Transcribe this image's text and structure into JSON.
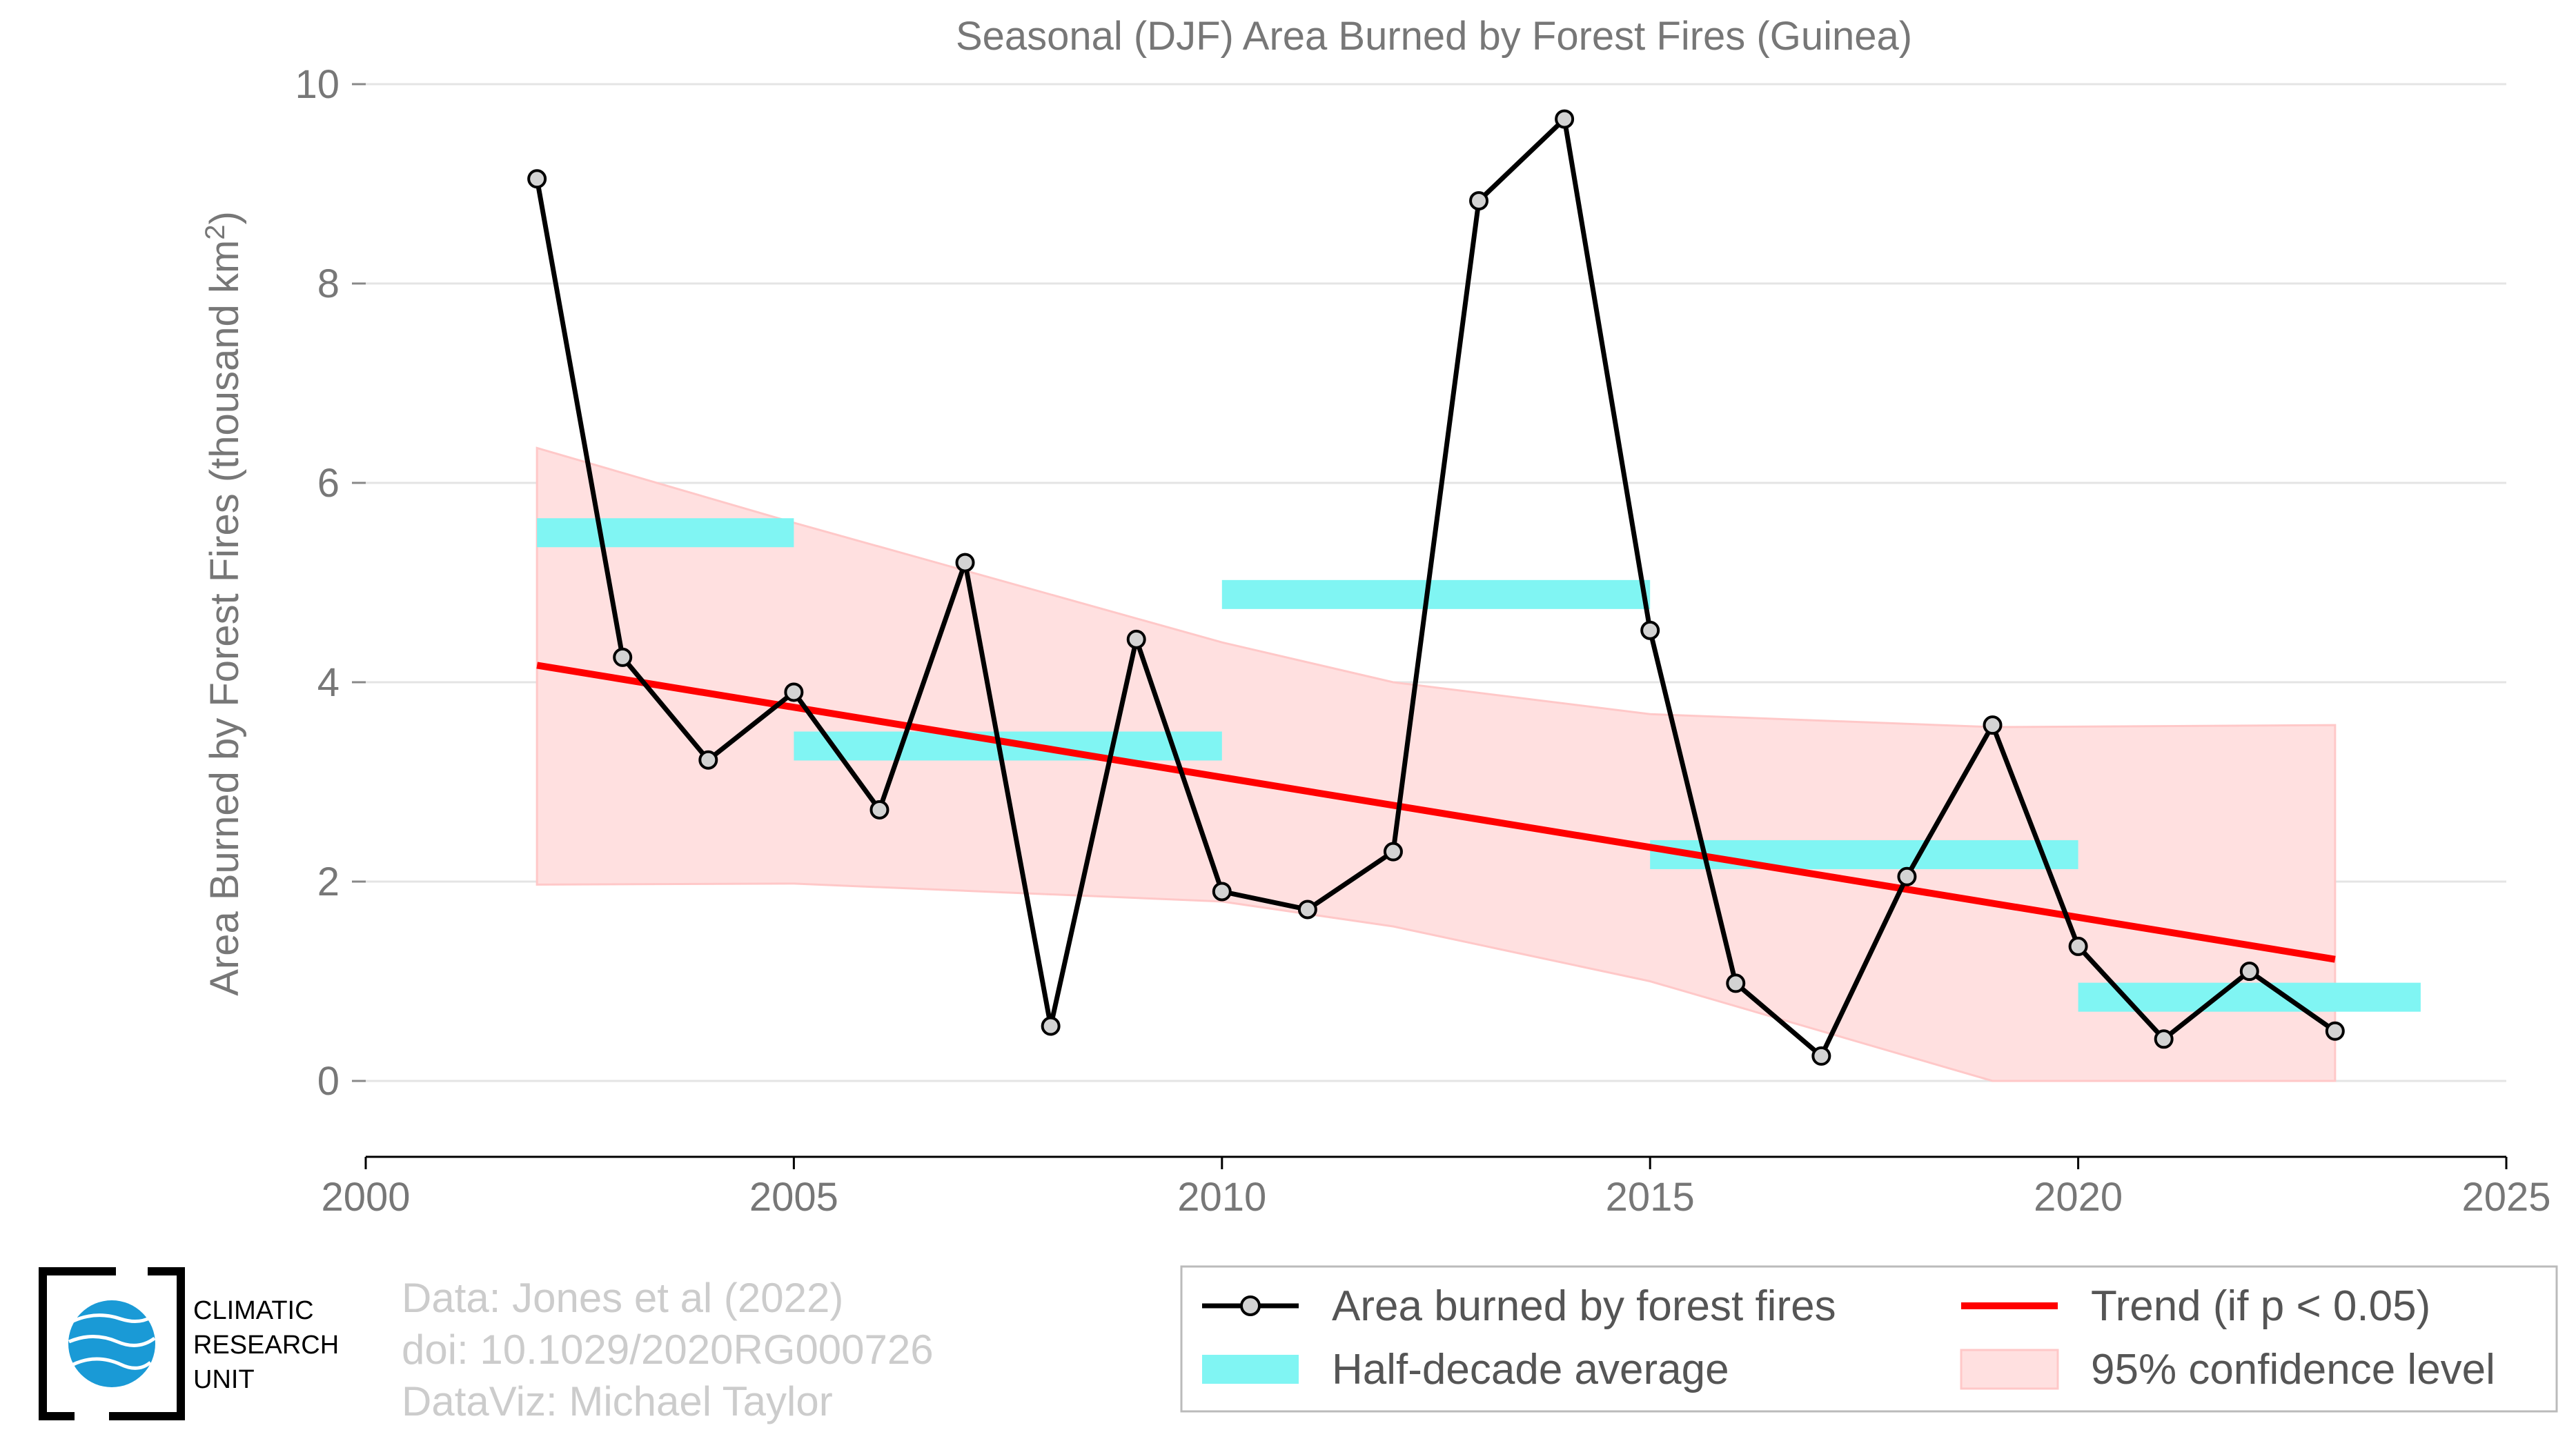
{
  "chart_data": {
    "type": "line",
    "title": "Seasonal (DJF) Area Burned by Forest Fires (Guinea)",
    "ylabel": "Area Burned by Forest Fires (thousand km",
    "ylabel_sup": "2",
    "ylabel_close": ")",
    "xlim": [
      2000,
      2025
    ],
    "ylim": [
      0,
      10
    ],
    "x_ticks": [
      2000,
      2005,
      2010,
      2015,
      2020,
      2025
    ],
    "y_ticks": [
      0,
      2,
      4,
      6,
      8,
      10
    ],
    "grid": "horizontal",
    "series": [
      {
        "name": "Area burned by forest fires",
        "color": "#000000",
        "x": [
          2002,
          2003,
          2004,
          2005,
          2006,
          2007,
          2008,
          2009,
          2010,
          2011,
          2012,
          2013,
          2014,
          2015,
          2016,
          2017,
          2018,
          2019,
          2020,
          2021,
          2022,
          2023
        ],
        "y": [
          9.05,
          4.25,
          3.22,
          3.9,
          2.72,
          5.2,
          0.55,
          4.43,
          1.9,
          1.72,
          2.3,
          8.83,
          9.65,
          4.52,
          0.98,
          0.25,
          2.05,
          3.57,
          1.35,
          0.42,
          1.1,
          0.5
        ]
      },
      {
        "name": "Half-decade average",
        "color": "#80f5f3",
        "segments": [
          {
            "x0": 2002,
            "x1": 2005,
            "y": 5.5
          },
          {
            "x0": 2005,
            "x1": 2010,
            "y": 3.36
          },
          {
            "x0": 2010,
            "x1": 2015,
            "y": 4.88
          },
          {
            "x0": 2015,
            "x1": 2020,
            "y": 2.27
          },
          {
            "x0": 2020,
            "x1": 2024,
            "y": 0.84
          }
        ]
      },
      {
        "name": "Trend (if p < 0.05)",
        "color": "#ff0000",
        "x": [
          2002,
          2023
        ],
        "y": [
          4.17,
          1.22
        ]
      },
      {
        "name": "95% confidence level",
        "color": "#ffe0e0",
        "x": [
          2002,
          2005,
          2010,
          2012,
          2015,
          2019,
          2023
        ],
        "upper": [
          6.35,
          5.6,
          4.4,
          4.0,
          3.68,
          3.55,
          3.57
        ],
        "lower": [
          1.97,
          1.98,
          1.8,
          1.55,
          1.0,
          0.0,
          0.0
        ]
      }
    ],
    "legend_position": "bottom-right"
  },
  "legend": {
    "items": [
      {
        "label": "Area burned by forest fires"
      },
      {
        "label": "Trend (if p < 0.05)"
      },
      {
        "label": "Half-decade average"
      },
      {
        "label": "95% confidence level"
      }
    ]
  },
  "credits": {
    "line1": "Data: Jones et al (2022)",
    "line2": "doi: 10.1029/2020RG000726",
    "line3": "DataViz: Michael Taylor"
  },
  "logo": {
    "line1": "CLIMATIC",
    "line2": "RESEARCH",
    "line3": "UNIT"
  }
}
